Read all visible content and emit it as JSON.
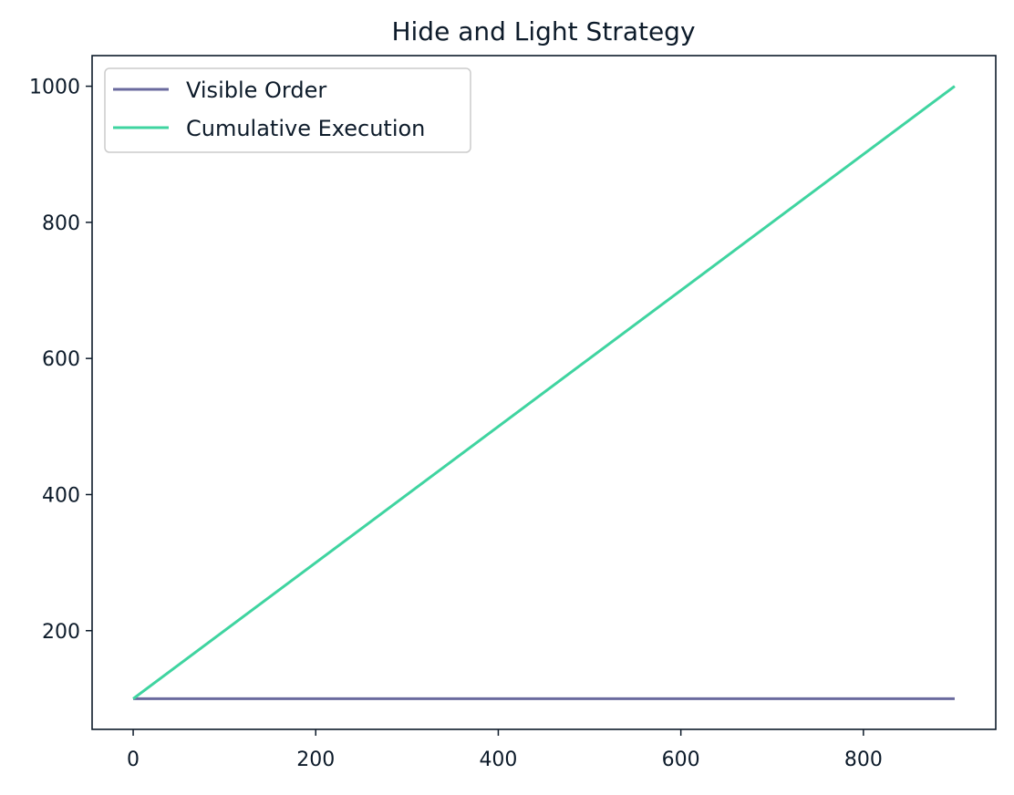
{
  "chart_data": {
    "type": "line",
    "title": "Hide and Light Strategy",
    "xlabel": "",
    "ylabel": "",
    "xlim": [
      -45,
      945
    ],
    "ylim": [
      55,
      1045
    ],
    "xticks": [
      0,
      200,
      400,
      600,
      800
    ],
    "yticks": [
      200,
      400,
      600,
      800,
      1000
    ],
    "xtick_labels": [
      "0",
      "200",
      "400",
      "600",
      "800"
    ],
    "ytick_labels": [
      "200",
      "400",
      "600",
      "800",
      "1000"
    ],
    "grid": false,
    "legend_position": "top-left",
    "series": [
      {
        "name": "Visible Order",
        "color": "#6a6a9e",
        "x": [
          0,
          900
        ],
        "y": [
          100,
          100
        ]
      },
      {
        "name": "Cumulative Execution",
        "color": "#3fd4a0",
        "x": [
          0,
          900
        ],
        "y": [
          100,
          1000
        ]
      }
    ]
  }
}
